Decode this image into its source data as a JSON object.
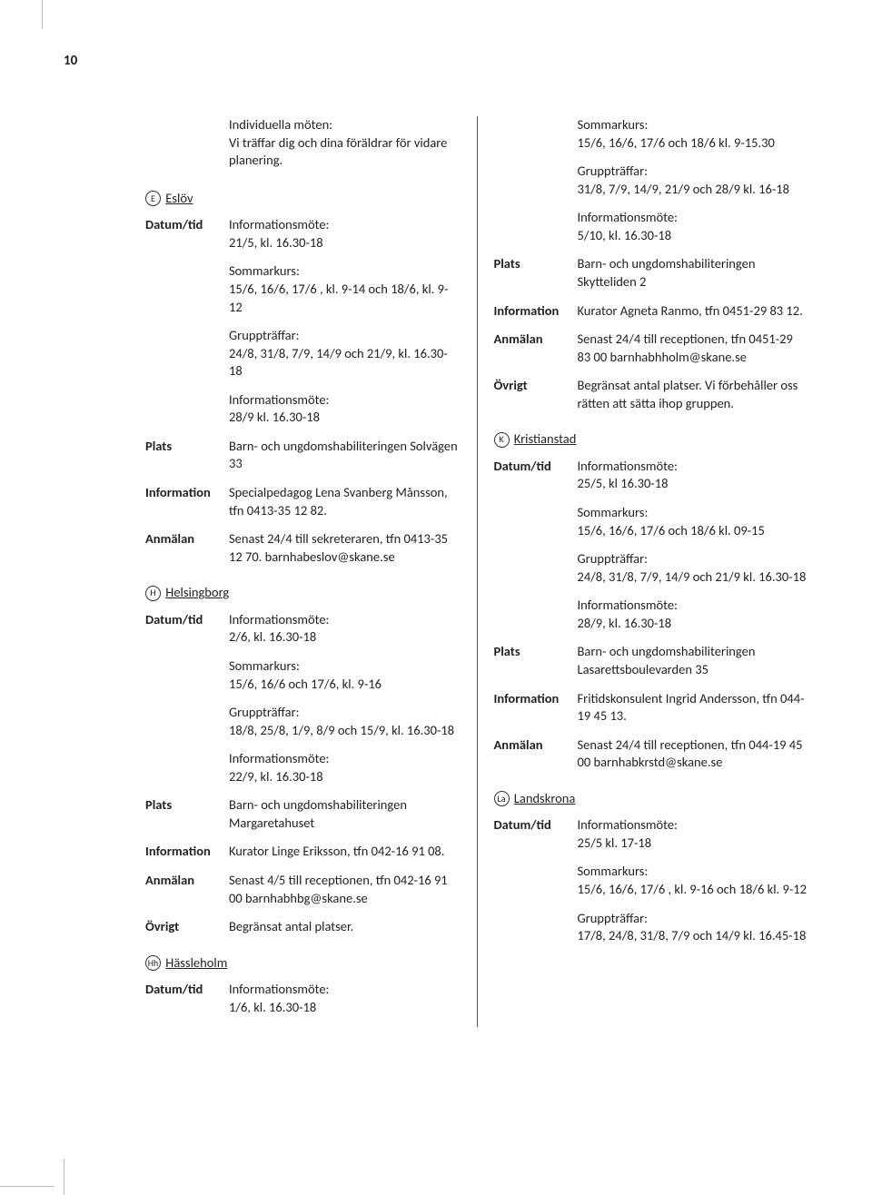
{
  "page_number": "10",
  "colors": {
    "text": "#222222",
    "background": "#ffffff",
    "divider": "#555555",
    "crop": "#bdbdbd"
  },
  "typography": {
    "body_fontsize_pt": 11,
    "bold_weight": "bold"
  },
  "intro_lines": [
    "Individuella möten:",
    "Vi träffar dig och dina föräldrar för vidare planering."
  ],
  "labels": {
    "datum": "Datum/tid",
    "plats": "Plats",
    "information": "Information",
    "anmalan": "Anmälan",
    "ovrigt": "Övrigt"
  },
  "left_sections": [
    {
      "letter": "E",
      "city": "Eslöv",
      "rows": [
        {
          "label": "datum",
          "lines": [
            "Informationsmöte:",
            "21/5, kl. 16.30-18"
          ]
        },
        {
          "label": "",
          "lines": [
            "Sommarkurs:",
            "15/6, 16/6, 17/6 , kl. 9-14 och 18/6, kl. 9-12"
          ]
        },
        {
          "label": "",
          "lines": [
            "Gruppträffar:",
            "24/8, 31/8, 7/9, 14/9 och 21/9, kl. 16.30-18"
          ]
        },
        {
          "label": "",
          "lines": [
            "Informationsmöte:",
            "28/9 kl. 16.30-18"
          ]
        },
        {
          "label": "plats",
          "lines": [
            "Barn- och ungdomshabiliteringen Solvägen 33"
          ]
        },
        {
          "label": "information",
          "lines": [
            "Specialpedagog Lena Svanberg Månsson, tfn 0413-35 12 82."
          ]
        },
        {
          "label": "anmalan",
          "lines": [
            "Senast 24/4 till sekreteraren, tfn 0413-35 12 70. barnhabeslov@skane.se"
          ]
        }
      ]
    },
    {
      "letter": "H",
      "city": "Helsingborg",
      "rows": [
        {
          "label": "datum",
          "lines": [
            "Informationsmöte:",
            "2/6, kl. 16.30-18"
          ]
        },
        {
          "label": "",
          "lines": [
            "Sommarkurs:",
            "15/6, 16/6 och 17/6, kl. 9-16"
          ]
        },
        {
          "label": "",
          "lines": [
            "Gruppträffar:",
            "18/8, 25/8, 1/9, 8/9 och 15/9, kl. 16.30-18"
          ]
        },
        {
          "label": "",
          "lines": [
            "Informationsmöte:",
            "22/9, kl. 16.30-18"
          ]
        },
        {
          "label": "plats",
          "lines": [
            "Barn- och ungdomshabiliteringen Margaretahuset"
          ]
        },
        {
          "label": "information",
          "lines": [
            "Kurator Linge Eriksson, tfn 042-16 91 08."
          ]
        },
        {
          "label": "anmalan",
          "lines": [
            "Senast 4/5 till receptionen, tfn 042-16 91 00 barnhabhbg@skane.se"
          ]
        },
        {
          "label": "ovrigt",
          "lines": [
            "Begränsat antal platser."
          ]
        }
      ]
    },
    {
      "letter": "Hh",
      "city": "Hässleholm",
      "rows": [
        {
          "label": "datum",
          "lines": [
            "Informationsmöte:",
            "1/6, kl. 16.30-18"
          ]
        }
      ]
    }
  ],
  "right_pre_rows": [
    {
      "label": "",
      "lines": [
        "Sommarkurs:",
        "15/6, 16/6, 17/6 och 18/6 kl. 9-15.30"
      ]
    },
    {
      "label": "",
      "lines": [
        "Gruppträffar:",
        "31/8, 7/9, 14/9, 21/9 och 28/9 kl. 16-18"
      ]
    },
    {
      "label": "",
      "lines": [
        "Informationsmöte:",
        "5/10, kl. 16.30-18"
      ]
    },
    {
      "label": "plats",
      "lines": [
        "Barn- och ungdomshabiliteringen Skytteliden 2"
      ]
    },
    {
      "label": "information",
      "lines": [
        "Kurator Agneta Ranmo, tfn 0451-29 83 12."
      ]
    },
    {
      "label": "anmalan",
      "lines": [
        "Senast 24/4 till receptionen, tfn 0451-29 83 00 barnhabhholm@skane.se"
      ]
    },
    {
      "label": "ovrigt",
      "lines": [
        "Begränsat antal platser. Vi för­behåller oss rätten att sätta ihop gruppen."
      ]
    }
  ],
  "right_sections": [
    {
      "letter": "K",
      "city": "Kristianstad",
      "rows": [
        {
          "label": "datum",
          "lines": [
            "Informationsmöte:",
            "25/5, kl 16.30-18"
          ]
        },
        {
          "label": "",
          "lines": [
            "Sommarkurs:",
            "15/6, 16/6, 17/6 och 18/6 kl. 09-15"
          ]
        },
        {
          "label": "",
          "lines": [
            "Gruppträffar:",
            "24/8, 31/8, 7/9, 14/9 och 21/9 kl. 16.30-18"
          ]
        },
        {
          "label": "",
          "lines": [
            "Informationsmöte:",
            "28/9, kl. 16.30-18"
          ]
        },
        {
          "label": "plats",
          "lines": [
            "Barn- och ungdomshabiliteringen Lasarettsboulevarden 35"
          ]
        },
        {
          "label": "information",
          "lines": [
            "Fritidskonsulent Ingrid Andersson, tfn 044-19 45 13."
          ]
        },
        {
          "label": "anmalan",
          "lines": [
            "Senast 24/4 till receptionen, tfn 044-19 45 00 barnhabkrstd@skane.se"
          ]
        }
      ]
    },
    {
      "letter": "La",
      "city": "Landskrona",
      "rows": [
        {
          "label": "datum",
          "lines": [
            "Informationsmöte:",
            "25/5 kl. 17-18"
          ]
        },
        {
          "label": "",
          "lines": [
            "Sommarkurs:",
            "15/6, 16/6, 17/6 , kl. 9-16 och 18/6 kl. 9-12"
          ]
        },
        {
          "label": "",
          "lines": [
            "Gruppträffar:",
            "17/8, 24/8, 31/8, 7/9 och 14/9 kl. 16.45-18"
          ]
        }
      ]
    }
  ]
}
